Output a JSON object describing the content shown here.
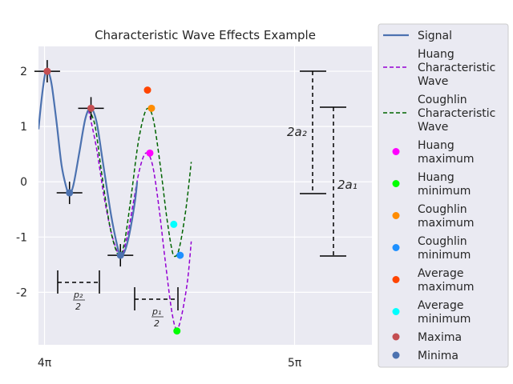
{
  "chart_data": {
    "type": "line",
    "title": "Characteristic Wave Effects Example",
    "xlabel": "",
    "ylabel": "",
    "xlim": [
      12.49,
      16.68
    ],
    "ylim": [
      -2.95,
      2.45
    ],
    "x_ticks": [
      {
        "value": 12.566,
        "label": "4π"
      },
      {
        "value": 15.708,
        "label": "5π"
      }
    ],
    "y_ticks": [
      {
        "value": 2,
        "label": "2"
      },
      {
        "value": 1,
        "label": "1"
      },
      {
        "value": 0,
        "label": "0"
      },
      {
        "value": -1,
        "label": "-1"
      },
      {
        "value": -2,
        "label": "-2"
      }
    ],
    "grid": true,
    "legend_position": "outside-right",
    "colors": {
      "background": "#eaeaf2",
      "grid": "#ffffff",
      "signal": "#4c72b0",
      "huang_wave": "#9400d3",
      "coughlin_wave": "#006400",
      "huang_max": "#ff00ff",
      "huang_min": "#00ff00",
      "coughlin_max": "#ff8c00",
      "coughlin_min": "#1e90ff",
      "average_max": "#ff4500",
      "average_min": "#00ffff",
      "maxima": "#c44e52",
      "minima": "#4c72b0",
      "annotation": "#000000"
    },
    "series": [
      {
        "name": "Signal",
        "kind": "line",
        "points": [
          [
            12.49,
            0.95
          ],
          [
            12.52,
            1.38
          ],
          [
            12.55,
            1.74
          ],
          [
            12.58,
            1.98
          ],
          [
            12.62,
            1.97
          ],
          [
            12.66,
            1.72
          ],
          [
            12.72,
            1.05
          ],
          [
            12.78,
            0.3
          ],
          [
            12.84,
            -0.1
          ],
          [
            12.88,
            -0.23
          ],
          [
            12.93,
            -0.05
          ],
          [
            13.0,
            0.5
          ],
          [
            13.08,
            1.15
          ],
          [
            13.15,
            1.33
          ],
          [
            13.22,
            1.08
          ],
          [
            13.3,
            0.35
          ],
          [
            13.4,
            -0.58
          ],
          [
            13.48,
            -1.16
          ],
          [
            13.52,
            -1.32
          ],
          [
            13.57,
            -1.27
          ],
          [
            13.63,
            -0.96
          ],
          [
            13.7,
            -0.38
          ],
          [
            13.73,
            0.0
          ]
        ]
      },
      {
        "name": "Huang Characteristic Wave",
        "kind": "dashed",
        "points": [
          [
            13.12,
            1.3
          ],
          [
            13.22,
            0.6
          ],
          [
            13.32,
            -0.32
          ],
          [
            13.42,
            -1.0
          ],
          [
            13.52,
            -1.34
          ],
          [
            13.6,
            -1.02
          ],
          [
            13.68,
            -0.4
          ],
          [
            13.76,
            0.22
          ],
          [
            13.84,
            0.52
          ],
          [
            13.92,
            0.32
          ],
          [
            14.0,
            -0.42
          ],
          [
            14.08,
            -1.4
          ],
          [
            14.16,
            -2.3
          ],
          [
            14.22,
            -2.66
          ],
          [
            14.28,
            -2.48
          ],
          [
            14.36,
            -1.82
          ],
          [
            14.41,
            -1.08
          ]
        ]
      },
      {
        "name": "Coughlin Characteristic Wave",
        "kind": "dashed",
        "points": [
          [
            13.12,
            1.32
          ],
          [
            13.2,
            1.02
          ],
          [
            13.28,
            0.2
          ],
          [
            13.38,
            -0.75
          ],
          [
            13.46,
            -1.22
          ],
          [
            13.52,
            -1.33
          ],
          [
            13.58,
            -1.02
          ],
          [
            13.66,
            -0.2
          ],
          [
            13.74,
            0.68
          ],
          [
            13.82,
            1.22
          ],
          [
            13.88,
            1.32
          ],
          [
            13.94,
            1.08
          ],
          [
            14.02,
            0.3
          ],
          [
            14.1,
            -0.62
          ],
          [
            14.16,
            -1.18
          ],
          [
            14.2,
            -1.35
          ],
          [
            14.26,
            -1.2
          ],
          [
            14.34,
            -0.52
          ],
          [
            14.41,
            0.36
          ]
        ]
      }
    ],
    "markers": [
      {
        "name": "Huang maximum",
        "points": [
          [
            13.89,
            0.52
          ]
        ]
      },
      {
        "name": "Huang minimum",
        "points": [
          [
            14.23,
            -2.7
          ]
        ]
      },
      {
        "name": "Coughlin maximum",
        "points": [
          [
            13.91,
            1.33
          ]
        ]
      },
      {
        "name": "Coughlin minimum",
        "points": [
          [
            14.27,
            -1.33
          ]
        ]
      },
      {
        "name": "Average maximum",
        "points": [
          [
            13.86,
            1.66
          ]
        ]
      },
      {
        "name": "Average minimum",
        "points": [
          [
            14.19,
            -0.77
          ]
        ]
      },
      {
        "name": "Maxima",
        "points": [
          [
            12.6,
            2.0
          ],
          [
            13.15,
            1.33
          ]
        ]
      },
      {
        "name": "Minima",
        "points": [
          [
            12.88,
            -0.2
          ],
          [
            13.52,
            -1.33
          ]
        ]
      }
    ],
    "annotations": [
      {
        "text": "2a₂"
      },
      {
        "text": "2a₁"
      },
      {
        "text": "p₂",
        "sub": "2"
      },
      {
        "text": "p₁",
        "sub": "2"
      }
    ]
  }
}
